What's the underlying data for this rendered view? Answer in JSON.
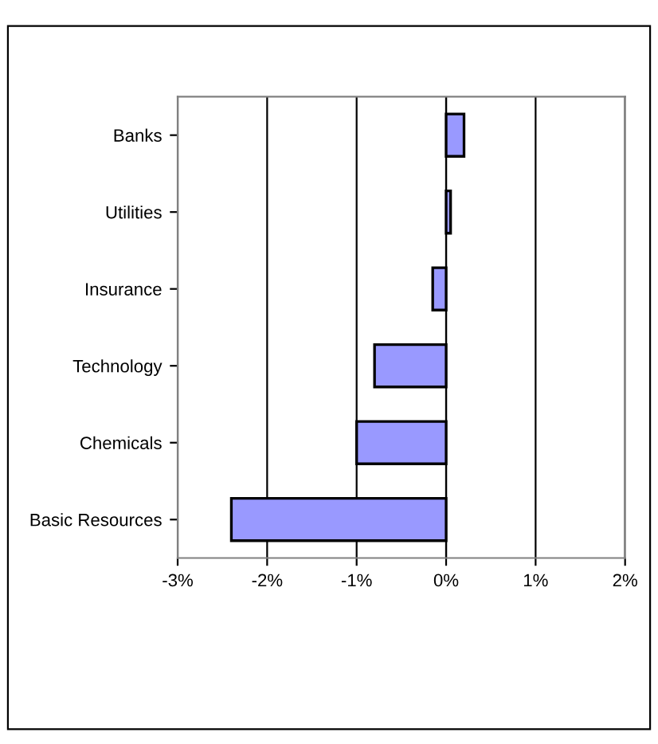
{
  "chart_data": {
    "type": "bar",
    "orientation": "horizontal",
    "categories": [
      "Banks",
      "Utilities",
      "Insurance",
      "Technology",
      "Chemicals",
      "Basic Resources"
    ],
    "values": [
      0.2,
      0.05,
      -0.15,
      -0.8,
      -1.0,
      -2.4
    ],
    "color": "#9999ff",
    "xlim": [
      -3,
      2
    ],
    "xticks": [
      {
        "value": -3,
        "label": "-3%"
      },
      {
        "value": -2,
        "label": "-2%"
      },
      {
        "value": -1,
        "label": "-1%"
      },
      {
        "value": 0,
        "label": "0%"
      },
      {
        "value": 1,
        "label": "1%"
      },
      {
        "value": 2,
        "label": "2%"
      }
    ],
    "grid": "x",
    "legend": false
  }
}
